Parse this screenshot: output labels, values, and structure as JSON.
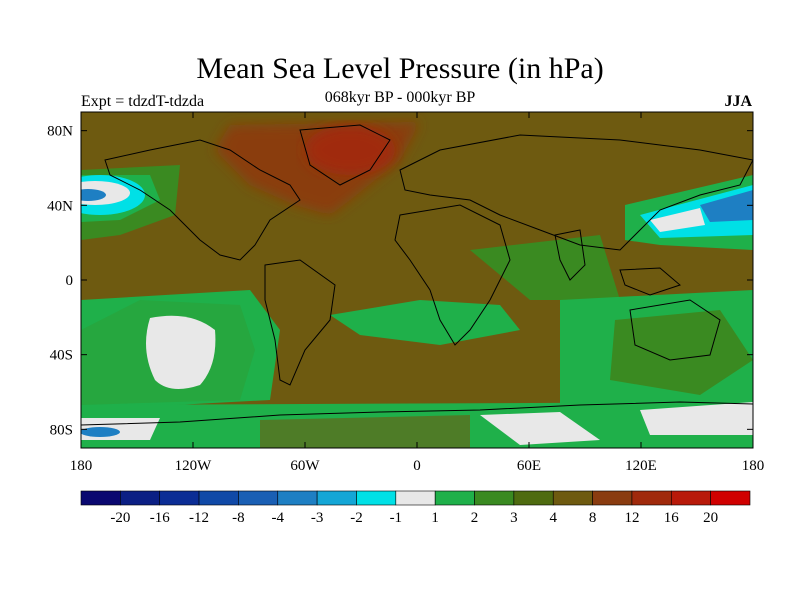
{
  "header": {
    "title": "Mean Sea Level Pressure (in hPa)",
    "subtitle": "068kyr BP - 000kyr BP",
    "experiment": "Expt = tdzdT-tdzda",
    "season": "JJA"
  },
  "axes": {
    "lat_labels": [
      "80N",
      "40N",
      "0",
      "40S",
      "80S"
    ],
    "lon_labels": [
      "180",
      "120W",
      "60W",
      "0",
      "60E",
      "120E",
      "180"
    ]
  },
  "colorbar": {
    "labels": [
      "-20",
      "-16",
      "-12",
      "-8",
      "-4",
      "-3",
      "-2",
      "-1",
      "1",
      "2",
      "3",
      "4",
      "8",
      "12",
      "16",
      "20"
    ],
    "colors": [
      "#0a0870",
      "#0b1f84",
      "#0b2d95",
      "#1049a7",
      "#1a5fb4",
      "#1e7fc3",
      "#14a6d6",
      "#00e0e6",
      "#e8e8e8",
      "#1fb04a",
      "#3a8a21",
      "#4e6b10",
      "#6e5a10",
      "#8a3c10",
      "#a02a0c",
      "#b81a0a",
      "#d00000"
    ]
  },
  "colors": {
    "background_field": "#6e5a10",
    "high_anomaly": "#8a3c10",
    "mid_green": "#3a8a21",
    "light_green": "#1fb04a",
    "near_zero": "#e8e8e8",
    "negative_cyan": "#00e0e6",
    "negative_blue": "#1e7fc3",
    "coast": "#000000"
  }
}
